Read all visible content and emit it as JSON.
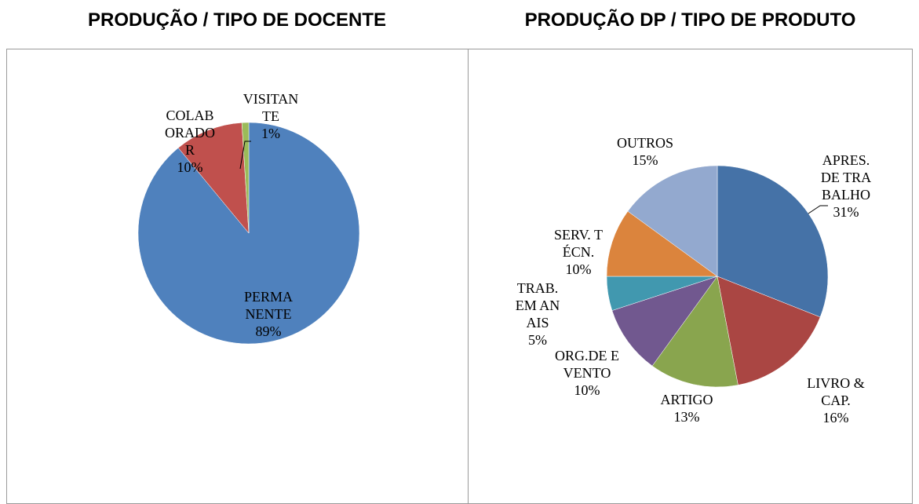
{
  "chart_data": [
    {
      "type": "pie",
      "title": "PRODUÇÃO / TIPO DE DOCENTE",
      "categories": [
        "PERMANENTE",
        "COLABORADOR",
        "VISITANTE"
      ],
      "values": [
        89,
        10,
        1
      ],
      "value_labels": [
        "89%",
        "10%",
        "1%"
      ],
      "colors": [
        "#4f81bd",
        "#c0504d",
        "#9bbb59"
      ]
    },
    {
      "type": "pie",
      "title": "PRODUÇÃO DP / TIPO DE PRODUTO",
      "categories": [
        "APRES. DE TRABALHO",
        "LIVRO & CAP.",
        "ARTIGO",
        "ORG.DE EVENTO",
        "TRAB. EM ANAIS",
        "SERV. TÉCN.",
        "OUTROS"
      ],
      "values": [
        31,
        16,
        13,
        10,
        5,
        10,
        15
      ],
      "value_labels": [
        "31%",
        "16%",
        "13%",
        "10%",
        "5%",
        "10%",
        "15%"
      ],
      "colors": [
        "#4572a7",
        "#aa4643",
        "#89a54e",
        "#71588f",
        "#4198af",
        "#db843d",
        "#93a9cf"
      ]
    }
  ]
}
